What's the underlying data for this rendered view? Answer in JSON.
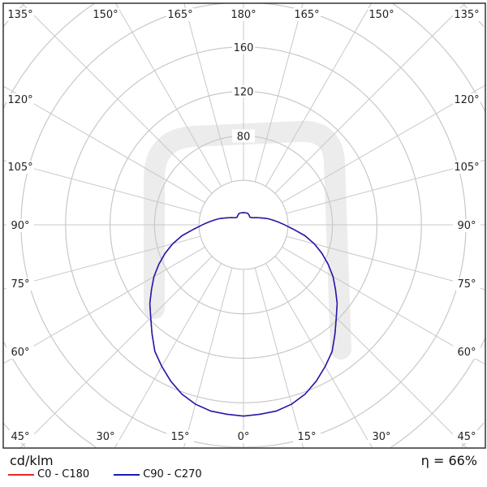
{
  "chart_data": {
    "type": "polar",
    "unit_label": "cd/klm",
    "efficiency_label": "η = 66%",
    "radial_ticks": [
      80,
      120,
      160
    ],
    "radial_rings": [
      40,
      80,
      120,
      160,
      200,
      240,
      280
    ],
    "angle_labels_top": [
      "135°",
      "150°",
      "165°",
      "180°",
      "165°",
      "150°",
      "135°"
    ],
    "angle_labels_side": [
      "120°",
      "105°",
      "90°",
      "75°",
      "60°"
    ],
    "angle_labels_bottom": [
      "45°",
      "30°",
      "15°",
      "0°",
      "15°",
      "30°",
      "45°"
    ],
    "grid": true,
    "gamma_deg": [
      0,
      5,
      10,
      15,
      20,
      25,
      30,
      35,
      40,
      45,
      50,
      55,
      60,
      65,
      70,
      75,
      80,
      85,
      90,
      95,
      100,
      105,
      110,
      115,
      120,
      130,
      140,
      150,
      160,
      170,
      180
    ],
    "series": [
      {
        "name": "C0 - C180",
        "color": "#e8262b",
        "values": [
          172,
          171,
          170,
          167,
          162,
          155,
          147,
          139,
          128,
          118,
          110,
          101,
          93,
          84,
          75,
          66,
          56,
          45,
          37,
          31,
          26,
          22,
          18,
          15,
          13,
          10,
          9,
          10,
          11,
          11,
          11
        ]
      },
      {
        "name": "C90 - C270",
        "color": "#1a1ab4",
        "values": [
          172,
          171,
          170,
          167,
          162,
          155,
          147,
          139,
          128,
          118,
          110,
          101,
          93,
          84,
          75,
          66,
          56,
          45,
          37,
          31,
          26,
          22,
          18,
          15,
          13,
          10,
          9,
          10,
          11,
          11,
          11
        ]
      }
    ]
  }
}
